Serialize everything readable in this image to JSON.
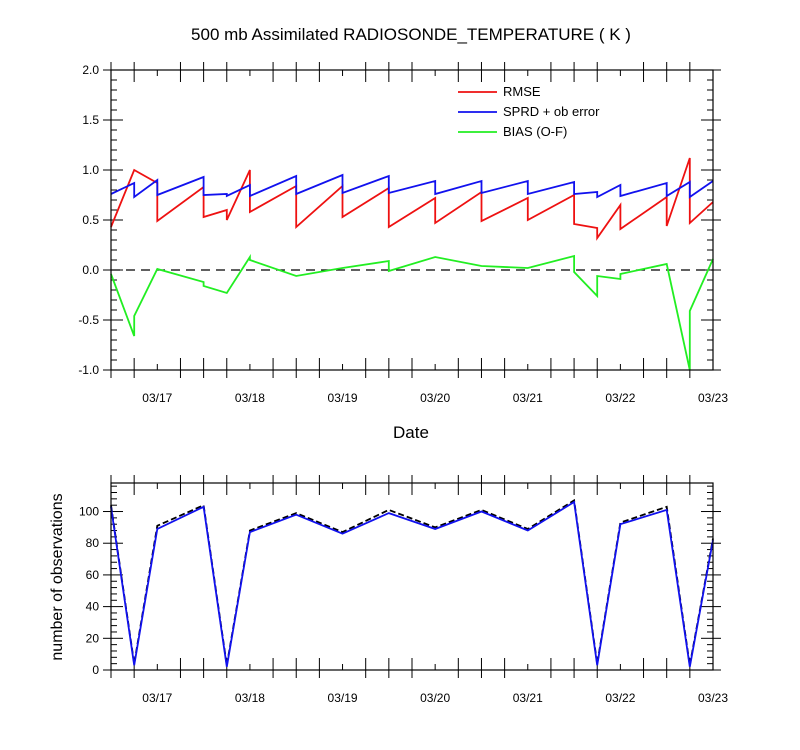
{
  "chart_data": [
    {
      "type": "line",
      "title": "500 mb Assimilated RADIOSONDE_TEMPERATURE ( K )",
      "xlabel": "Date",
      "ylabel": "",
      "xlim": [
        0,
        6.5
      ],
      "ylim": [
        -1.0,
        2.0
      ],
      "x_ticks": [
        "03/17",
        "03/18",
        "03/19",
        "03/20",
        "03/21",
        "03/22",
        "03/23"
      ],
      "y_ticks": [
        "2.0",
        "1.5",
        "1.0",
        "0.5",
        "0.0",
        "-0.5",
        "-1.0"
      ],
      "y_tick_values": [
        2.0,
        1.5,
        1.0,
        0.5,
        0.0,
        -0.5,
        -1.0
      ],
      "reference_line": 0.0,
      "legend_position": "top-right",
      "series": [
        {
          "name": "RMSE",
          "color": "#ee1111",
          "points": [
            [
              0.0,
              0.43
            ],
            [
              0.25,
              1.0
            ],
            [
              0.5,
              0.87
            ],
            [
              0.5,
              0.49
            ],
            [
              1.0,
              0.83
            ],
            [
              1.0,
              0.53
            ],
            [
              1.25,
              0.6
            ],
            [
              1.25,
              0.5
            ],
            [
              1.5,
              1.0
            ],
            [
              1.5,
              0.58
            ],
            [
              2.0,
              0.84
            ],
            [
              2.0,
              0.43
            ],
            [
              2.5,
              0.84
            ],
            [
              2.5,
              0.53
            ],
            [
              3.0,
              0.82
            ],
            [
              3.0,
              0.43
            ],
            [
              3.5,
              0.72
            ],
            [
              3.5,
              0.47
            ],
            [
              4.0,
              0.78
            ],
            [
              4.0,
              0.49
            ],
            [
              4.5,
              0.72
            ],
            [
              4.5,
              0.5
            ],
            [
              5.0,
              0.75
            ],
            [
              5.0,
              0.46
            ],
            [
              5.25,
              0.42
            ],
            [
              5.25,
              0.32
            ],
            [
              5.5,
              0.65
            ],
            [
              5.5,
              0.41
            ],
            [
              6.0,
              0.73
            ],
            [
              6.0,
              0.44
            ],
            [
              6.25,
              1.12
            ],
            [
              6.25,
              0.47
            ],
            [
              6.5,
              0.68
            ]
          ]
        },
        {
          "name": "SPRD + ob error",
          "color": "#1111ee",
          "points": [
            [
              0.0,
              0.76
            ],
            [
              0.25,
              0.87
            ],
            [
              0.25,
              0.73
            ],
            [
              0.5,
              0.9
            ],
            [
              0.5,
              0.75
            ],
            [
              1.0,
              0.93
            ],
            [
              1.0,
              0.75
            ],
            [
              1.25,
              0.76
            ],
            [
              1.25,
              0.74
            ],
            [
              1.5,
              0.85
            ],
            [
              1.5,
              0.74
            ],
            [
              2.0,
              0.94
            ],
            [
              2.0,
              0.76
            ],
            [
              2.5,
              0.95
            ],
            [
              2.5,
              0.77
            ],
            [
              3.0,
              0.94
            ],
            [
              3.0,
              0.77
            ],
            [
              3.5,
              0.89
            ],
            [
              3.5,
              0.76
            ],
            [
              4.0,
              0.89
            ],
            [
              4.0,
              0.77
            ],
            [
              4.5,
              0.89
            ],
            [
              4.5,
              0.76
            ],
            [
              5.0,
              0.88
            ],
            [
              5.0,
              0.76
            ],
            [
              5.25,
              0.78
            ],
            [
              5.25,
              0.73
            ],
            [
              5.5,
              0.85
            ],
            [
              5.5,
              0.74
            ],
            [
              6.0,
              0.87
            ],
            [
              6.0,
              0.74
            ],
            [
              6.25,
              0.88
            ],
            [
              6.25,
              0.73
            ],
            [
              6.5,
              0.89
            ]
          ]
        },
        {
          "name": "BIAS (O-F)",
          "color": "#22ee22",
          "points": [
            [
              0.0,
              -0.04
            ],
            [
              0.25,
              -0.66
            ],
            [
              0.25,
              -0.46
            ],
            [
              0.5,
              0.01
            ],
            [
              1.0,
              -0.12
            ],
            [
              1.0,
              -0.16
            ],
            [
              1.25,
              -0.23
            ],
            [
              1.5,
              0.13
            ],
            [
              1.5,
              0.1
            ],
            [
              2.0,
              -0.06
            ],
            [
              2.5,
              0.02
            ],
            [
              3.0,
              0.09
            ],
            [
              3.0,
              -0.01
            ],
            [
              3.5,
              0.13
            ],
            [
              4.0,
              0.04
            ],
            [
              4.5,
              0.02
            ],
            [
              5.0,
              0.14
            ],
            [
              5.0,
              -0.02
            ],
            [
              5.25,
              -0.26
            ],
            [
              5.25,
              -0.06
            ],
            [
              5.5,
              -0.09
            ],
            [
              5.5,
              -0.04
            ],
            [
              6.0,
              0.06
            ],
            [
              6.25,
              -1.0
            ],
            [
              6.25,
              -0.41
            ],
            [
              6.5,
              0.11
            ]
          ]
        }
      ]
    },
    {
      "type": "line",
      "title": "",
      "xlabel": "",
      "ylabel": "number of observations",
      "xlim": [
        0,
        6.5
      ],
      "ylim": [
        0,
        118
      ],
      "x_ticks": [
        "03/17",
        "03/18",
        "03/19",
        "03/20",
        "03/21",
        "03/22",
        "03/23"
      ],
      "y_ticks": [
        "0",
        "20",
        "40",
        "60",
        "80",
        "100"
      ],
      "y_tick_values": [
        0,
        20,
        40,
        60,
        80,
        100
      ],
      "series": [
        {
          "style": "dashed",
          "color": "#000000",
          "points": [
            [
              0.0,
              104
            ],
            [
              0.25,
              4
            ],
            [
              0.5,
              91
            ],
            [
              1.0,
              104
            ],
            [
              1.25,
              3
            ],
            [
              1.5,
              88
            ],
            [
              2.0,
              99
            ],
            [
              2.5,
              87
            ],
            [
              3.0,
              101
            ],
            [
              3.5,
              90
            ],
            [
              4.0,
              101
            ],
            [
              4.5,
              89
            ],
            [
              5.0,
              107
            ],
            [
              5.25,
              4
            ],
            [
              5.5,
              93
            ],
            [
              6.0,
              103
            ],
            [
              6.25,
              3
            ],
            [
              6.5,
              83
            ]
          ]
        },
        {
          "style": "solid",
          "color": "#1111ee",
          "points": [
            [
              0.0,
              103
            ],
            [
              0.25,
              3
            ],
            [
              0.5,
              89
            ],
            [
              1.0,
              103
            ],
            [
              1.25,
              2
            ],
            [
              1.5,
              87
            ],
            [
              2.0,
              98
            ],
            [
              2.5,
              86
            ],
            [
              3.0,
              99
            ],
            [
              3.5,
              89
            ],
            [
              4.0,
              100
            ],
            [
              4.5,
              88
            ],
            [
              5.0,
              106
            ],
            [
              5.25,
              3
            ],
            [
              5.5,
              92
            ],
            [
              6.0,
              101
            ],
            [
              6.25,
              2
            ],
            [
              6.5,
              82
            ]
          ]
        }
      ]
    }
  ]
}
